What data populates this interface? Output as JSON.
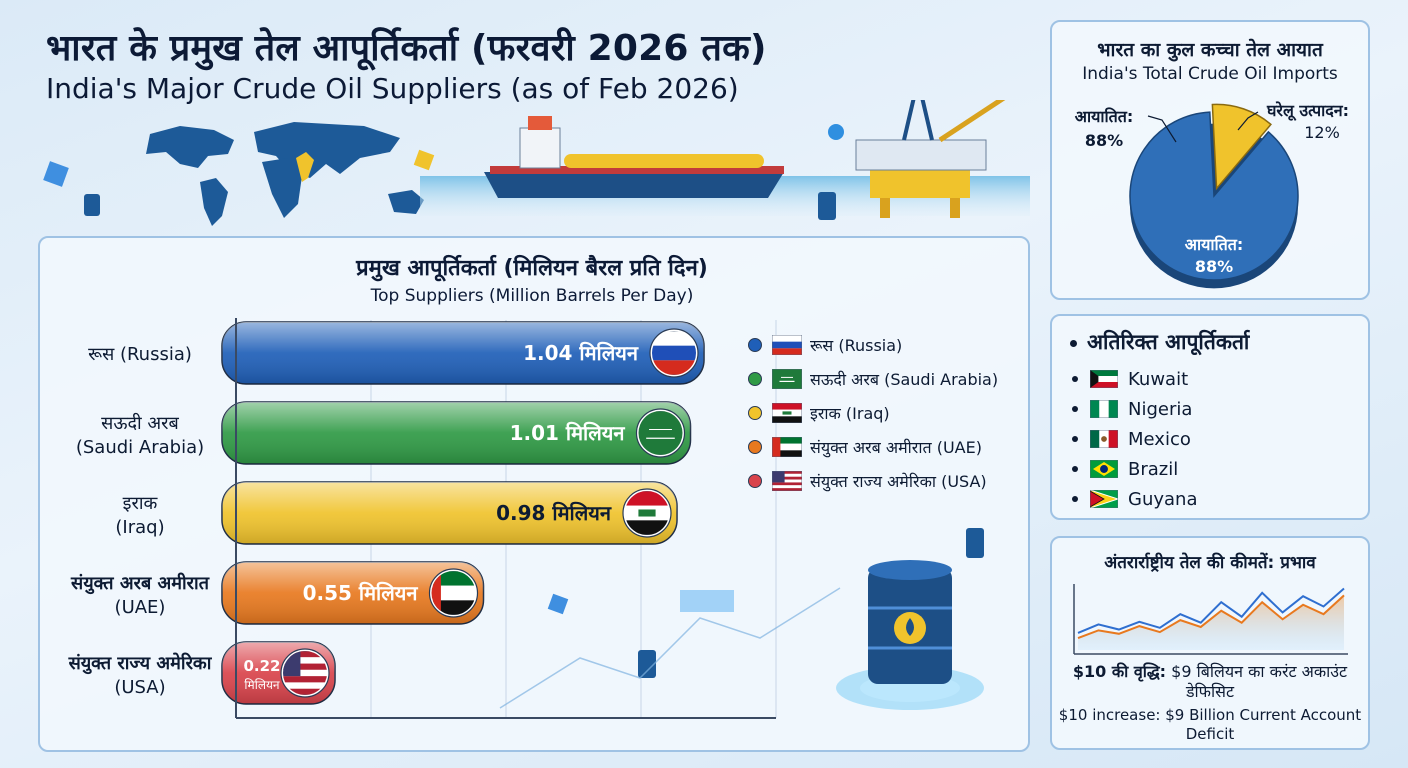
{
  "header": {
    "title_hi": "भारत के प्रमुख तेल आपूर्तिकर्ता (फरवरी 2026 तक)",
    "title_en": "India's Major Crude Oil Suppliers (as of Feb 2026)"
  },
  "chart_data": [
    {
      "type": "bar",
      "orientation": "horizontal",
      "title": "प्रमुख आपूर्तिकर्ता (मिलियन बैरल प्रति दिन)",
      "subtitle": "Top Suppliers (Million Barrels Per Day)",
      "categories_hi": [
        "रूस",
        "सऊदी अरब",
        "इराक",
        "संयुक्त अरब अमीरात",
        "संयुक्त राज्य अमेरिका"
      ],
      "categories_en": [
        "(Russia)",
        "(Saudi Arabia)",
        "(Iraq)",
        "(UAE)",
        "(USA)"
      ],
      "values": [
        1.04,
        1.01,
        0.98,
        0.55,
        0.22
      ],
      "value_unit": "मिलियन",
      "xlim": [
        0,
        1.2
      ],
      "colors": [
        "#1f5fb8",
        "#2f9a45",
        "#f0c32c",
        "#e8791f",
        "#d9434b"
      ],
      "legend": [
        "रूस (Russia)",
        "सऊदी अरब (Saudi Arabia)",
        "इराक (Iraq)",
        "संयुक्त अरब अमीरात (UAE)",
        "संयुक्त राज्य अमेरिका (USA)"
      ],
      "legend_placement": "right"
    },
    {
      "type": "pie",
      "title": "भारत का कुल कच्चा तेल आयात",
      "subtitle": "India's Total Crude Oil Imports",
      "slices": [
        {
          "label": "आयातित:",
          "value": 88,
          "display": "88%",
          "color": "#2f6fb8"
        },
        {
          "label": "घरेलू उत्पादन:",
          "value": 12,
          "display": "12%",
          "color": "#f0c32c"
        }
      ],
      "outer_label": "आयातित:",
      "outer_value": "88%"
    },
    {
      "type": "line",
      "title": "अंतरार्राष्ट्रीय तेल की कीमतें: प्रभाव",
      "series": [
        {
          "values": [
            2,
            3,
            2.4,
            3.3,
            2.6,
            4.2,
            3.2,
            5.6,
            3.9,
            6.7,
            4.4,
            6.3,
            5.1,
            7.2
          ],
          "color": "#2f6fd0"
        },
        {
          "values": [
            1.4,
            2.3,
            1.9,
            2.8,
            2.1,
            3.5,
            2.7,
            4.6,
            3.2,
            5.6,
            3.6,
            5.3,
            4.2,
            6.4
          ],
          "color": "#e8791f"
        }
      ],
      "note_hi_bold": "$10 की वृद्धि:",
      "note_hi": "$9 बिलियन का करंट अकाउंट डेफिसिट",
      "note_en": "$10 increase: $9 Billion Current Account Deficit"
    }
  ],
  "extra_suppliers": {
    "title": "अतिरिक्त आपूर्तिकर्ता",
    "items": [
      {
        "name": "Kuwait",
        "flag": "kuwait-flag-icon"
      },
      {
        "name": "Nigeria",
        "flag": "nigeria-flag-icon"
      },
      {
        "name": "Mexico",
        "flag": "mexico-flag-icon"
      },
      {
        "name": "Brazil",
        "flag": "brazil-flag-icon"
      },
      {
        "name": "Guyana",
        "flag": "guyana-flag-icon"
      }
    ]
  }
}
